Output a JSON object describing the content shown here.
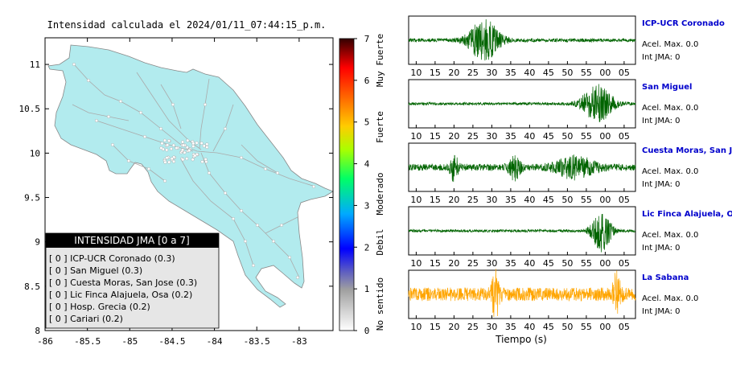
{
  "map": {
    "title": "Intensidad calculada el 2024/01/11_07:44:15_p.m.",
    "x_ticks": [
      "-86",
      "-85.5",
      "-85",
      "-84.5",
      "-84",
      "-83.5",
      "-83"
    ],
    "y_ticks": [
      "11",
      "10.5",
      "10",
      "9.5",
      "9",
      "8.5",
      "8"
    ],
    "land_color": "#b2ebee",
    "legend": {
      "title": "INTENSIDAD JMA [0 a 7]",
      "entries": [
        "[ 0 ] ICP-UCR Coronado (0.3)",
        "[ 0 ] San Miguel (0.3)",
        "[ 0 ] Cuesta Moras, San Jose (0.3)",
        "[ 0 ] Lic Finca Alajuela, Osa (0.2)",
        "[ 0 ] Hosp. Grecia (0.2)",
        "[ 0 ] Cariari (0.2)"
      ]
    }
  },
  "colorbar": {
    "ticks": [
      "7",
      "6",
      "5",
      "4",
      "3",
      "2",
      "1",
      "0"
    ],
    "labels": [
      "Muy Fuerte",
      "Fuerte",
      "Moderado",
      "Debil",
      "No sentido"
    ]
  },
  "seismograms": {
    "x_label": "Tiempo (s)",
    "x_ticks": [
      "10",
      "15",
      "20",
      "25",
      "30",
      "35",
      "40",
      "45",
      "50",
      "55",
      "00",
      "05"
    ],
    "stations": [
      {
        "name": "ICP-UCR Coronado",
        "acel": "Acel. Max. 0.0",
        "jma": "Int JMA: 0",
        "color": "#006400",
        "show_axis": true
      },
      {
        "name": "San Miguel",
        "acel": "Acel. Max. 0.0",
        "jma": "Int JMA: 0",
        "color": "#006400",
        "show_axis": true
      },
      {
        "name": "Cuesta Moras, San Jose",
        "acel": "Acel. Max. 0.0",
        "jma": "Int JMA: 0",
        "color": "#006400",
        "show_axis": true
      },
      {
        "name": "Lic Finca Alajuela, Osa",
        "acel": "Acel. Max. 0.0",
        "jma": "Int JMA: 0",
        "color": "#006400",
        "show_axis": true
      },
      {
        "name": "La Sabana",
        "acel": "Acel. Max. 0.0",
        "jma": "Int JMA: 0",
        "color": "#ffa500",
        "show_axis": true
      }
    ],
    "name_color": "#0000cc"
  },
  "chart_data": [
    {
      "type": "heatmap",
      "title": "Intensidad calculada el 2024/01/11_07:44:15_p.m.",
      "xlabel": "",
      "ylabel": "",
      "xlim": [
        -86,
        -82.6
      ],
      "ylim": [
        8,
        11.3
      ],
      "legend_placement": "bottom-left",
      "colorbar_range": [
        0,
        7
      ]
    },
    {
      "type": "line",
      "xlabel": "Tiempo (s)",
      "x_ticks": [
        "10",
        "15",
        "20",
        "25",
        "30",
        "35",
        "40",
        "45",
        "50",
        "55",
        "00",
        "05"
      ],
      "series": [
        {
          "name": "ICP-UCR Coronado",
          "bursts": [
            {
              "center_s": 28,
              "width_s": 4,
              "amplitude": 0.9
            }
          ],
          "noise": 0.08
        },
        {
          "name": "San Miguel",
          "bursts": [
            {
              "center_s": 58,
              "width_s": 4,
              "amplitude": 0.85
            }
          ],
          "noise": 0.06
        },
        {
          "name": "Cuesta Moras, San Jose",
          "bursts": [
            {
              "center_s": 20,
              "width_s": 1,
              "amplitude": 0.6
            },
            {
              "center_s": 36,
              "width_s": 1.5,
              "amplitude": 0.5
            },
            {
              "center_s": 52,
              "width_s": 5,
              "amplitude": 0.45
            }
          ],
          "noise": 0.15
        },
        {
          "name": "Lic Finca Alajuela, Osa",
          "bursts": [
            {
              "center_s": 59,
              "width_s": 2.5,
              "amplitude": 0.9
            }
          ],
          "noise": 0.06
        },
        {
          "name": "La Sabana",
          "bursts": [
            {
              "center_s": 31,
              "width_s": 1,
              "amplitude": 0.9
            },
            {
              "center_s": 63,
              "width_s": 1,
              "amplitude": 0.8
            }
          ],
          "noise": 0.3
        }
      ]
    }
  ]
}
